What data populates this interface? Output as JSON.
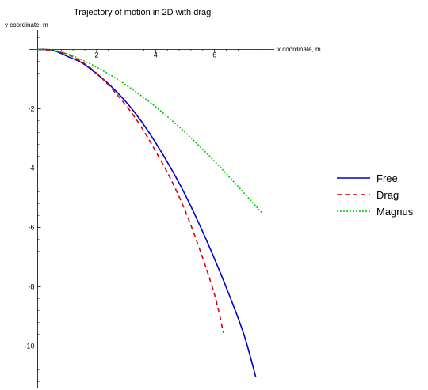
{
  "chart_data": {
    "type": "line",
    "title": "Trajectory of motion in 2D with drag",
    "xlabel": "x coordinate, m",
    "ylabel": "y coordinate, m",
    "xlim": [
      0,
      8.2
    ],
    "ylim": [
      -11.5,
      0.6
    ],
    "x_ticks": [
      2,
      4,
      6
    ],
    "y_ticks": [
      -2,
      -4,
      -6,
      -8,
      -10
    ],
    "x_tick_labels": [
      "2",
      "4",
      "6"
    ],
    "y_tick_labels": [
      "-2",
      "-4",
      "-6",
      "-8",
      "-10"
    ],
    "legend_position": "right",
    "series": [
      {
        "name": "Free",
        "color": "#0000cc",
        "dash": "solid",
        "x": [
          0,
          0.5,
          1,
          1.5,
          2,
          2.5,
          3,
          3.5,
          4,
          4.5,
          5,
          5.5,
          6,
          6.5,
          7,
          7.4
        ],
        "y": [
          0,
          -0.02,
          -0.23,
          -0.45,
          -0.82,
          -1.25,
          -1.77,
          -2.4,
          -3.14,
          -3.97,
          -4.89,
          -5.93,
          -7.06,
          -8.28,
          -9.62,
          -11.05
        ]
      },
      {
        "name": "Drag",
        "color": "#dd0000",
        "dash": "dashed",
        "x": [
          0,
          0.5,
          1,
          1.5,
          2,
          2.5,
          3,
          3.5,
          4,
          4.5,
          5,
          5.5,
          6,
          6.3
        ],
        "y": [
          0,
          -0.04,
          -0.16,
          -0.42,
          -0.8,
          -1.31,
          -1.89,
          -2.59,
          -3.43,
          -4.34,
          -5.43,
          -6.75,
          -8.26,
          -9.55
        ]
      },
      {
        "name": "Magnus",
        "color": "#00cc00",
        "dash": "dotted",
        "x": [
          0,
          0.5,
          1,
          1.5,
          2,
          2.5,
          3,
          3.5,
          4,
          4.5,
          5,
          5.5,
          6,
          6.5,
          7,
          7.6
        ],
        "y": [
          0,
          -0.02,
          -0.15,
          -0.35,
          -0.6,
          -0.88,
          -1.2,
          -1.55,
          -1.93,
          -2.35,
          -2.79,
          -3.27,
          -3.77,
          -4.3,
          -4.84,
          -5.5
        ]
      }
    ]
  }
}
